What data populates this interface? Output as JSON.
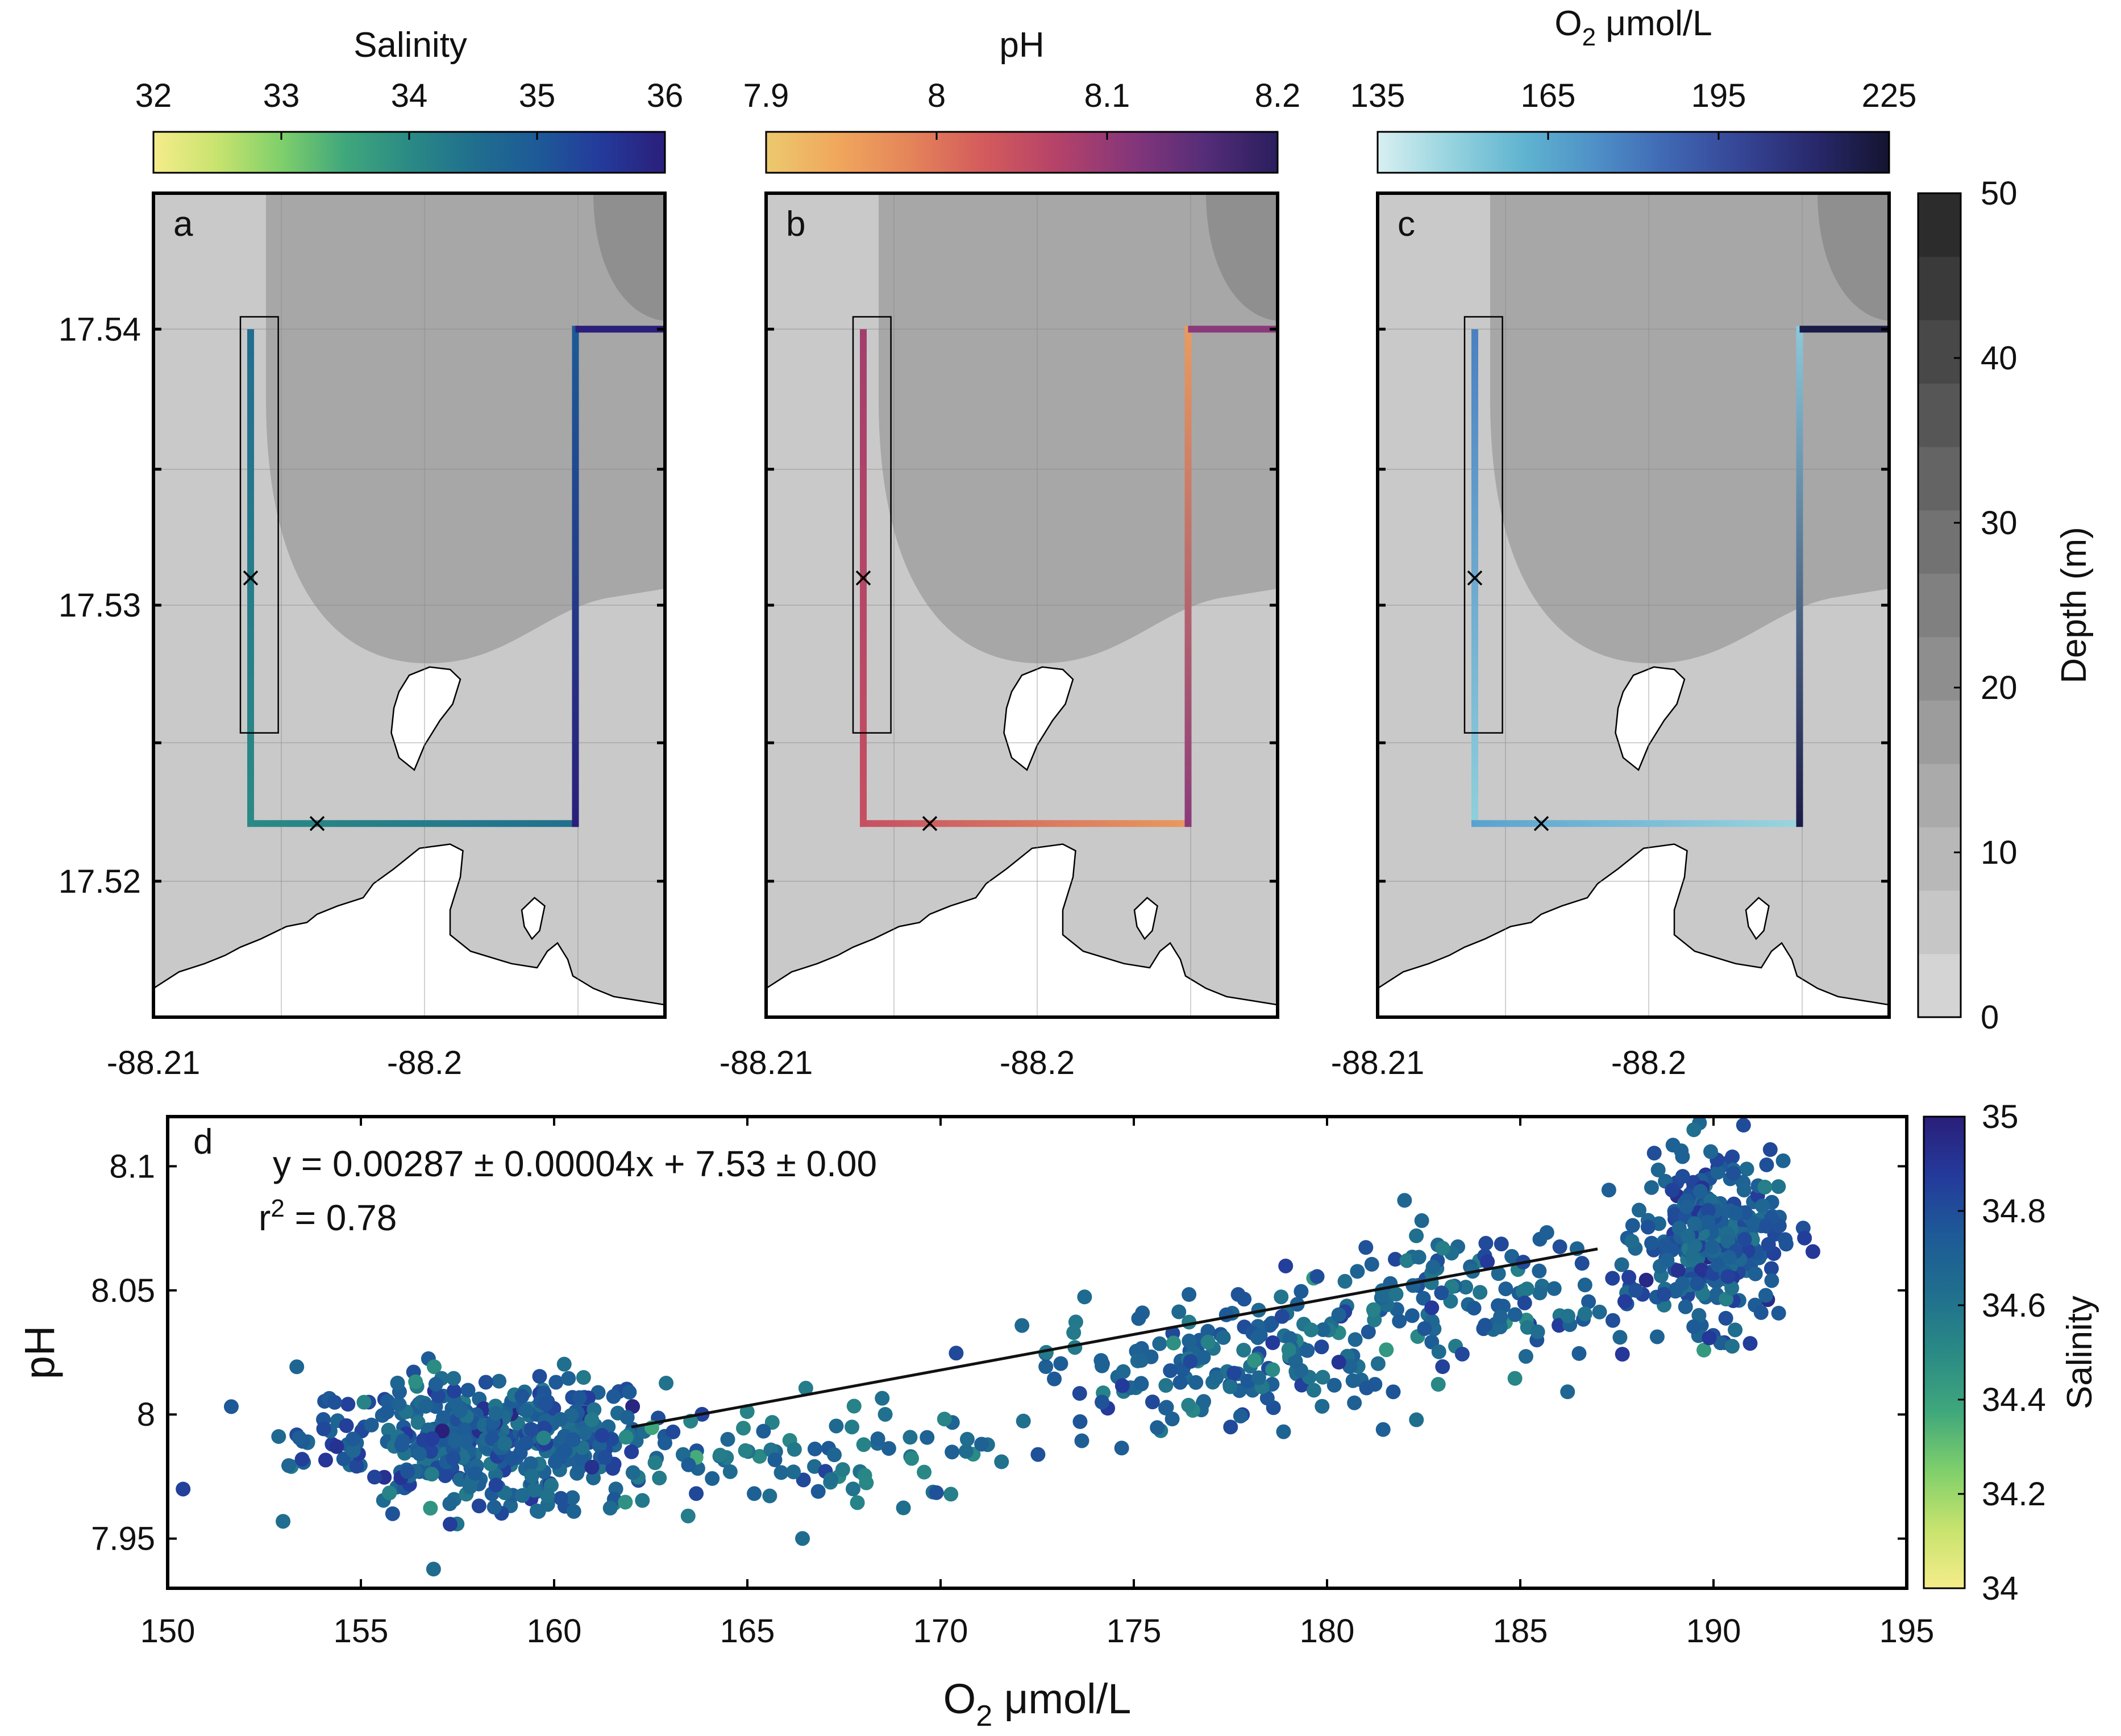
{
  "colors": {
    "salinity": [
      "#f5ec8a",
      "#c8e36e",
      "#7fcf6b",
      "#3fa77c",
      "#2a8a85",
      "#206f8e",
      "#1d5a97",
      "#243a9b",
      "#2a1f7a"
    ],
    "ph": [
      "#ecc96e",
      "#f0a65c",
      "#e4835a",
      "#d35a5c",
      "#b44269",
      "#86367a",
      "#552d78",
      "#2a1e5e"
    ],
    "o2": [
      "#d8f0f1",
      "#96d3df",
      "#5fb4d0",
      "#4e8fc7",
      "#3f66b2",
      "#354494",
      "#28286b",
      "#141430"
    ],
    "depth": [
      "#d4d4d4",
      "#c6c6c6",
      "#b8b8b8",
      "#aaaaaa",
      "#9c9c9c",
      "#8e8e8e",
      "#808080",
      "#727272",
      "#646464",
      "#565656",
      "#484848",
      "#3a3a3a",
      "#2c2c2c"
    ],
    "land": "#ffffff",
    "shallow": "#c9c9c9",
    "deep": "#a7a7a7",
    "deeper": "#8f8f8f",
    "fit_line": "#111111"
  },
  "colorbars": {
    "salinity": {
      "label": "Salinity",
      "ticks": [
        "32",
        "33",
        "34",
        "35",
        "36"
      ]
    },
    "ph": {
      "label": "pH",
      "ticks": [
        "7.9",
        "8",
        "8.1",
        "8.2"
      ]
    },
    "o2": {
      "label_main": "O",
      "label_sub": "2",
      "label_unit": " μmol/L",
      "ticks": [
        "135",
        "165",
        "195",
        "225"
      ]
    },
    "depth": {
      "label": "Depth (m)",
      "ticks": [
        "0",
        "10",
        "20",
        "30",
        "40",
        "50"
      ]
    },
    "salinity_d": {
      "label": "Salinity",
      "ticks": [
        "34",
        "34.2",
        "34.4",
        "34.6",
        "34.8",
        "35"
      ]
    }
  },
  "maps": {
    "panels": [
      "a",
      "b",
      "c"
    ],
    "y_ticks": [
      "17.52",
      "17.53",
      "17.54"
    ],
    "x_ticks": [
      "-88.21",
      "-88.2"
    ]
  },
  "chart_data": {
    "type": "scatter",
    "panel": "d",
    "title": "",
    "xlabel_main": "O",
    "xlabel_sub": "2",
    "xlabel_unit": " μmol/L",
    "ylabel": "pH",
    "xlim": [
      150,
      195
    ],
    "ylim": [
      7.93,
      8.12
    ],
    "x_ticks": [
      "150",
      "155",
      "160",
      "165",
      "170",
      "175",
      "180",
      "185",
      "190",
      "195"
    ],
    "y_ticks": [
      "7.95",
      "8",
      "8.05",
      "8.1"
    ],
    "colorbar_label": "Salinity",
    "color_range": [
      34,
      35
    ],
    "equation": "y = 0.00287 ± 0.00004x + 7.53 ± 0.00",
    "r2_main": "r",
    "r2_sup": "2",
    "r2_value": " = 0.78",
    "fit": {
      "slope": 0.00287,
      "intercept": 7.53,
      "x_start": 162,
      "x_end": 187
    },
    "clusters": [
      {
        "o2_center": 158.2,
        "o2_spread": 2.3,
        "ph_center": 7.99,
        "ph_spread": 0.013,
        "count": 420,
        "sal_center": 34.72
      },
      {
        "o2_center": 166.5,
        "o2_spread": 3.5,
        "ph_center": 7.985,
        "ph_spread": 0.012,
        "count": 90,
        "sal_center": 34.62
      },
      {
        "o2_center": 177.0,
        "o2_spread": 2.2,
        "ph_center": 8.02,
        "ph_spread": 0.012,
        "count": 150,
        "sal_center": 34.68
      },
      {
        "o2_center": 183.5,
        "o2_spread": 2.6,
        "ph_center": 8.045,
        "ph_spread": 0.015,
        "count": 150,
        "sal_center": 34.7
      },
      {
        "o2_center": 190.0,
        "o2_spread": 0.9,
        "ph_center": 8.07,
        "ph_spread": 0.016,
        "count": 280,
        "sal_center": 34.72
      }
    ]
  }
}
